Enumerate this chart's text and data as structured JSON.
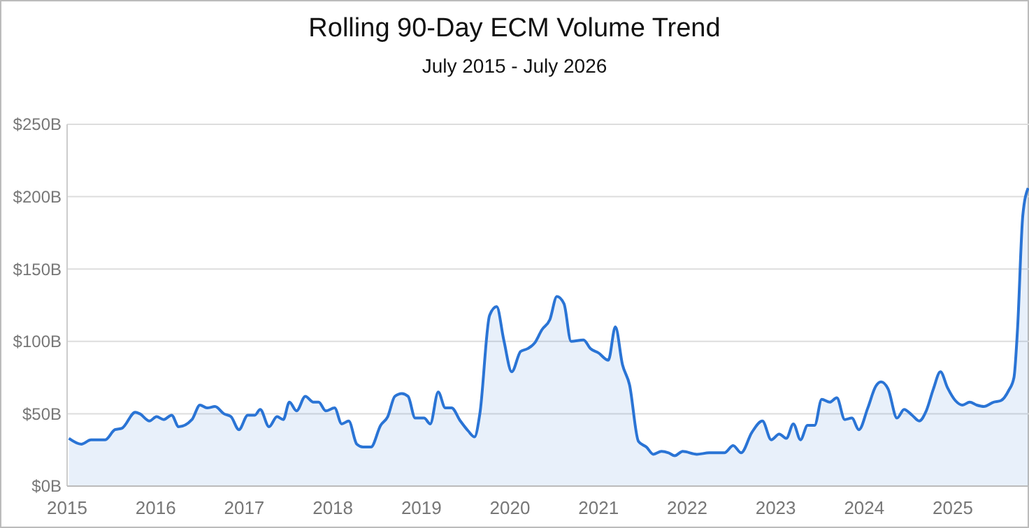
{
  "chart_data": {
    "type": "area",
    "title": "Rolling 90-Day ECM Volume Trend",
    "subtitle": "July 2015 - July 2026",
    "xlim": [
      2015,
      2025.86
    ],
    "xticks": [
      2015,
      2016,
      2017,
      2018,
      2019,
      2020,
      2021,
      2022,
      2023,
      2024,
      2025
    ],
    "ylim": [
      0,
      250
    ],
    "yticks": [
      {
        "value": 0,
        "label": "$0B"
      },
      {
        "value": 50,
        "label": "$50B"
      },
      {
        "value": 100,
        "label": "$100B"
      },
      {
        "value": 150,
        "label": "$150B"
      },
      {
        "value": 200,
        "label": "$200B"
      },
      {
        "value": 250,
        "label": "$250B"
      }
    ],
    "grid": "y",
    "series": [
      {
        "color": "#2a74d5",
        "x": [
          2015.02,
          2015.16,
          2015.27,
          2015.43,
          2015.54,
          2015.62,
          2015.77,
          2015.82,
          2015.93,
          2016.01,
          2016.09,
          2016.18,
          2016.26,
          2016.41,
          2016.5,
          2016.58,
          2016.67,
          2016.77,
          2016.85,
          2016.94,
          2017.04,
          2017.12,
          2017.18,
          2017.28,
          2017.37,
          2017.44,
          2017.51,
          2017.59,
          2017.69,
          2017.78,
          2017.84,
          2017.92,
          2018.02,
          2018.1,
          2018.18,
          2018.27,
          2018.34,
          2018.43,
          2018.54,
          2018.62,
          2018.7,
          2018.78,
          2018.85,
          2018.93,
          2019.03,
          2019.1,
          2019.19,
          2019.27,
          2019.34,
          2019.44,
          2019.53,
          2019.6,
          2019.66,
          2019.77,
          2019.85,
          2019.93,
          2020.02,
          2020.12,
          2020.2,
          2020.28,
          2020.36,
          2020.45,
          2020.53,
          2020.61,
          2020.69,
          2020.83,
          2020.91,
          2021.0,
          2021.11,
          2021.19,
          2021.27,
          2021.35,
          2021.45,
          2021.54,
          2021.62,
          2021.71,
          2021.79,
          2021.86,
          2021.95,
          2022.11,
          2022.25,
          2022.42,
          2022.52,
          2022.61,
          2022.73,
          2022.85,
          2022.95,
          2023.04,
          2023.12,
          2023.2,
          2023.28,
          2023.36,
          2023.44,
          2023.52,
          2023.61,
          2023.69,
          2023.78,
          2023.86,
          2023.94,
          2024.04,
          2024.13,
          2024.19,
          2024.27,
          2024.37,
          2024.45,
          2024.54,
          2024.62,
          2024.7,
          2024.78,
          2024.86,
          2024.94,
          2025.03,
          2025.11,
          2025.19,
          2025.27,
          2025.35,
          2025.46,
          2025.54,
          2025.63,
          2025.69,
          2025.73,
          2025.79,
          2025.85
        ],
        "values": [
          33,
          29,
          32,
          32,
          39,
          40,
          51,
          50,
          45,
          48,
          46,
          49,
          41,
          46,
          56,
          54,
          55,
          50,
          48,
          39,
          49,
          49,
          53,
          41,
          48,
          46,
          58,
          52,
          62,
          58,
          58,
          52,
          54,
          43,
          45,
          29,
          27,
          27,
          42,
          48,
          62,
          64,
          62,
          47,
          47,
          43,
          65,
          54,
          54,
          45,
          38,
          34,
          50,
          118,
          124,
          101,
          79,
          93,
          95,
          99,
          108,
          115,
          131,
          126,
          100,
          101,
          95,
          92,
          87,
          110,
          84,
          70,
          31,
          27,
          22,
          24,
          23,
          21,
          24,
          22,
          23,
          23,
          28,
          23,
          37,
          45,
          32,
          36,
          33,
          43,
          32,
          42,
          42,
          60,
          58,
          61,
          46,
          47,
          39,
          54,
          69,
          72,
          67,
          47,
          53,
          49,
          45,
          52,
          67,
          79,
          68,
          59,
          56,
          58,
          56,
          55,
          58,
          59,
          66,
          75,
          108,
          187,
          206
        ]
      }
    ]
  }
}
